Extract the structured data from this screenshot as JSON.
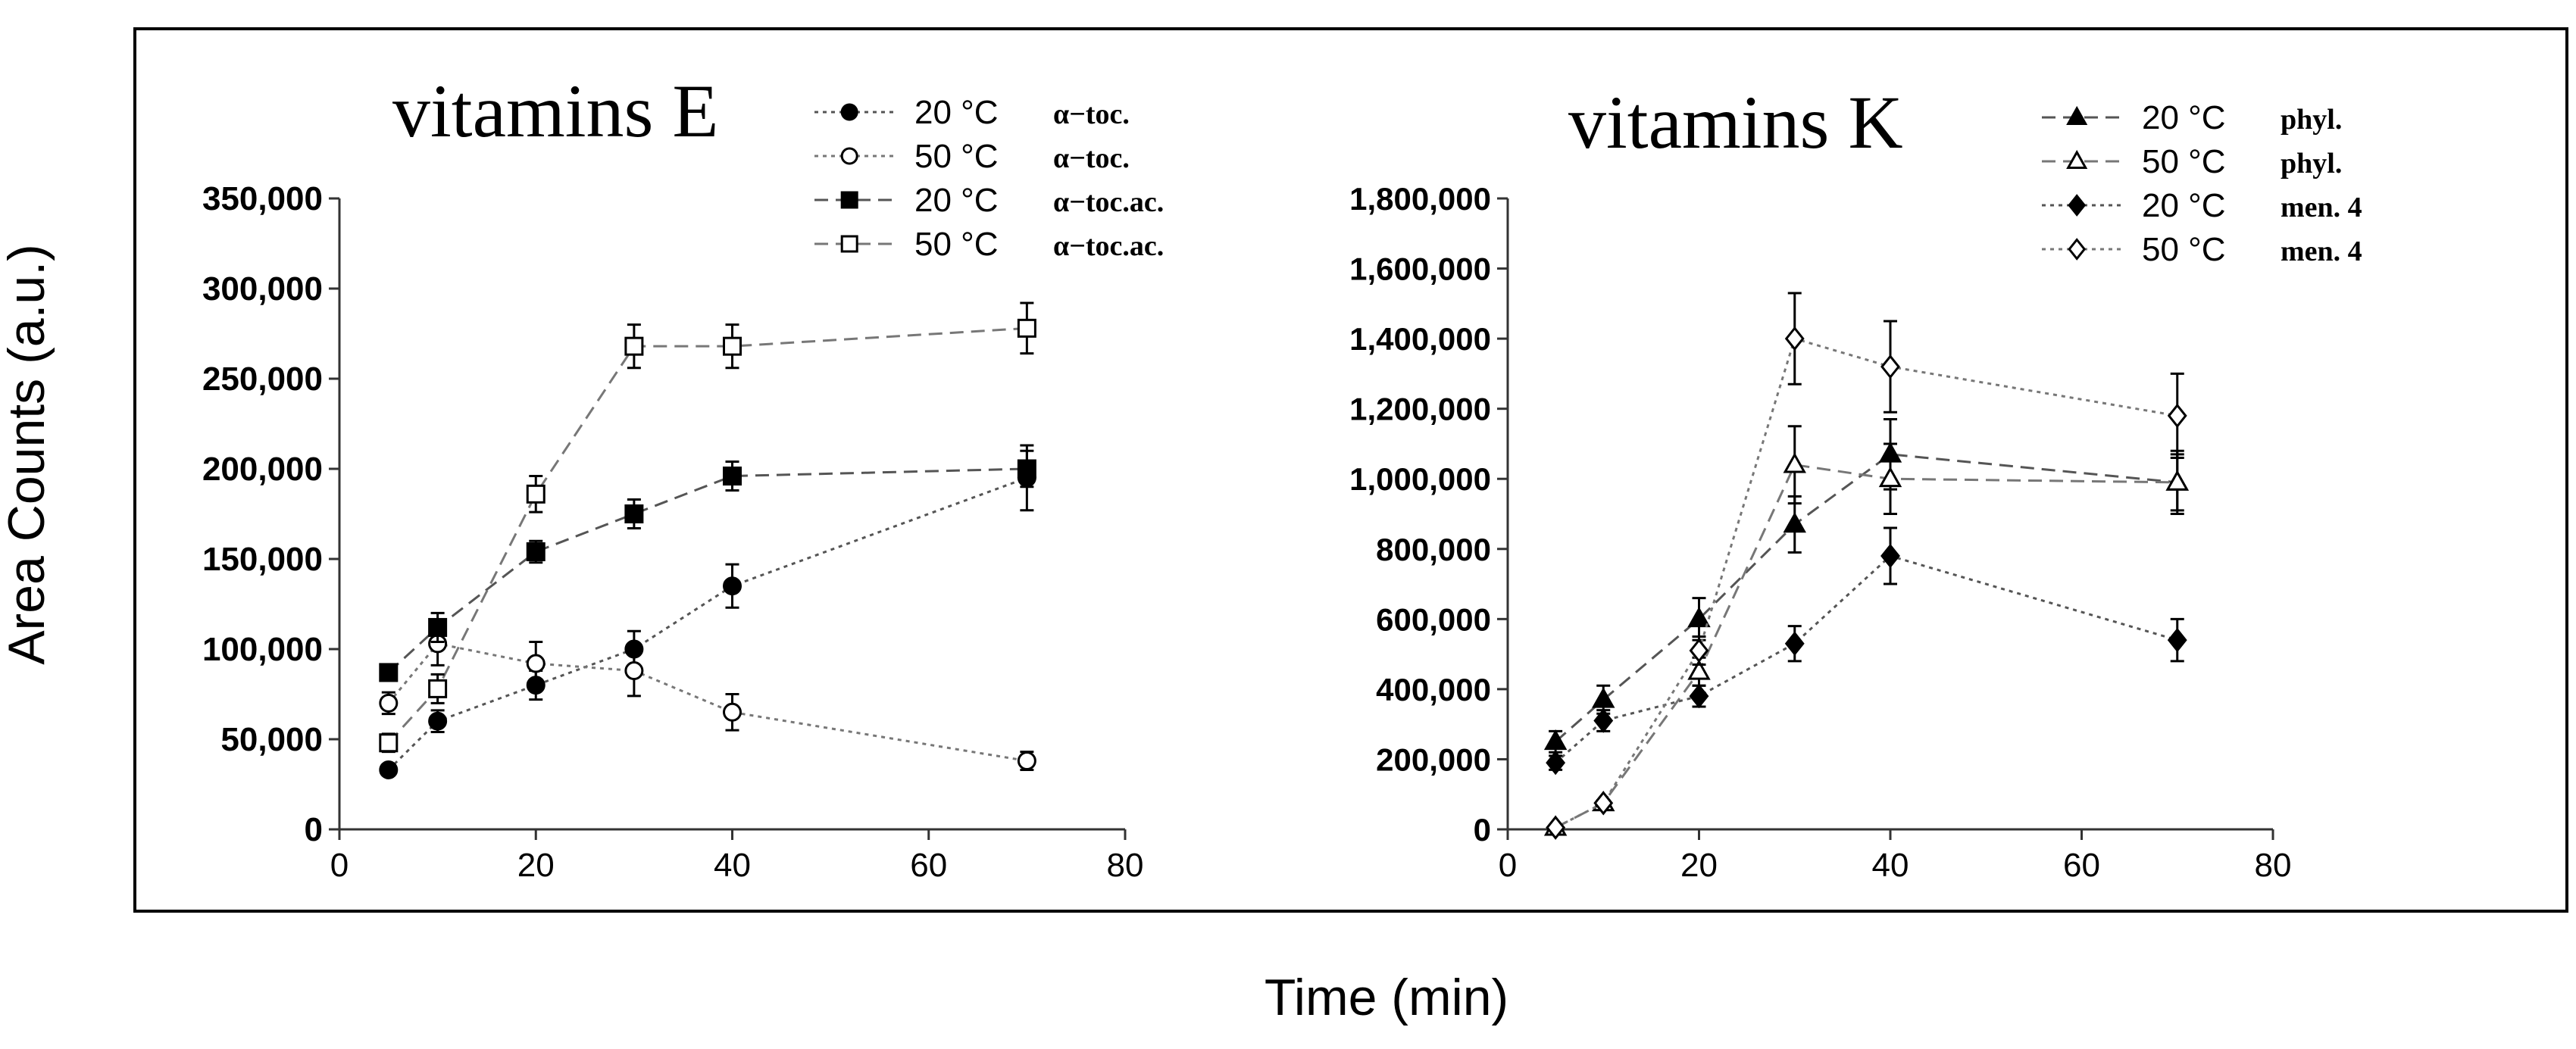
{
  "figure": {
    "ylabel": "Area Counts (a.u.)",
    "xlabel": "Time (min)",
    "colors": {
      "background": "#ffffff",
      "frame": "#000000",
      "ink": "#000000"
    }
  },
  "chart_data": [
    {
      "type": "line",
      "title": "vitamins E",
      "xlabel": "Time (min)",
      "ylabel": "Area Counts (a.u.)",
      "xlim": [
        0,
        80
      ],
      "ylim": [
        0,
        350000
      ],
      "xticks": [
        0,
        20,
        40,
        60,
        80
      ],
      "xtick_labels": [
        "0",
        "20",
        "40",
        "60",
        "80"
      ],
      "yticks": [
        0,
        50000,
        100000,
        150000,
        200000,
        250000,
        300000,
        350000
      ],
      "ytick_labels": [
        "0",
        "50,000",
        "100,000",
        "150,000",
        "200,000",
        "250,000",
        "300,000",
        "350,000"
      ],
      "legend_position": "top-right",
      "series": [
        {
          "name": "α−toc.",
          "temp": "20 °C",
          "marker": "circle",
          "filled": true,
          "dash": "dotted",
          "x": [
            5,
            10,
            20,
            30,
            40,
            70
          ],
          "y": [
            33000,
            60000,
            80000,
            100000,
            135000,
            195000
          ],
          "err": [
            3000,
            6000,
            8000,
            10000,
            12000,
            18000
          ]
        },
        {
          "name": "α−toc.",
          "temp": "50 °C",
          "marker": "circle",
          "filled": false,
          "dash": "dotted",
          "x": [
            5,
            10,
            20,
            30,
            40,
            70
          ],
          "y": [
            70000,
            103000,
            92000,
            88000,
            65000,
            38000
          ],
          "err": [
            6000,
            12000,
            12000,
            14000,
            10000,
            5000
          ]
        },
        {
          "name": "α−toc.ac.",
          "temp": "20 °C",
          "marker": "square",
          "filled": true,
          "dash": "dashed",
          "x": [
            5,
            10,
            20,
            30,
            40,
            70
          ],
          "y": [
            87000,
            112000,
            154000,
            175000,
            196000,
            200000
          ],
          "err": [
            4000,
            8000,
            6000,
            8000,
            8000,
            10000
          ]
        },
        {
          "name": "α−toc.ac.",
          "temp": "50 °C",
          "marker": "square",
          "filled": false,
          "dash": "dashed",
          "x": [
            5,
            10,
            20,
            30,
            40,
            70
          ],
          "y": [
            48000,
            78000,
            186000,
            268000,
            268000,
            278000
          ],
          "err": [
            5000,
            8000,
            10000,
            12000,
            12000,
            14000
          ]
        }
      ]
    },
    {
      "type": "line",
      "title": "vitamins K",
      "xlabel": "Time (min)",
      "ylabel": "Area Counts (a.u.)",
      "xlim": [
        0,
        80
      ],
      "ylim": [
        0,
        1800000
      ],
      "xticks": [
        0,
        20,
        40,
        60,
        80
      ],
      "xtick_labels": [
        "0",
        "20",
        "40",
        "60",
        "80"
      ],
      "yticks": [
        0,
        200000,
        400000,
        600000,
        800000,
        1000000,
        1200000,
        1400000,
        1600000,
        1800000
      ],
      "ytick_labels": [
        "0",
        "200,000",
        "400,000",
        "600,000",
        "800,000",
        "1,000,000",
        "1,200,000",
        "1,400,000",
        "1,600,000",
        "1,800,000"
      ],
      "legend_position": "top-right",
      "series": [
        {
          "name": "phyl.",
          "temp": "20 °C",
          "marker": "triangle",
          "filled": true,
          "dash": "dashed",
          "x": [
            5,
            10,
            20,
            30,
            40,
            70
          ],
          "y": [
            250000,
            370000,
            600000,
            870000,
            1070000,
            990000
          ],
          "err": [
            30000,
            40000,
            60000,
            80000,
            100000,
            80000
          ]
        },
        {
          "name": "phyl.",
          "temp": "50 °C",
          "marker": "triangle",
          "filled": false,
          "dash": "dashed",
          "x": [
            5,
            10,
            20,
            30,
            40,
            70
          ],
          "y": [
            5000,
            75000,
            450000,
            1040000,
            1000000,
            990000
          ],
          "err": [
            3000,
            8000,
            40000,
            110000,
            100000,
            90000
          ]
        },
        {
          "name": "men. 4",
          "temp": "20 °C",
          "marker": "diamond",
          "filled": true,
          "dash": "dotted",
          "x": [
            5,
            10,
            20,
            30,
            40,
            70
          ],
          "y": [
            190000,
            310000,
            380000,
            530000,
            780000,
            540000
          ],
          "err": [
            20000,
            30000,
            30000,
            50000,
            80000,
            60000
          ]
        },
        {
          "name": "men. 4",
          "temp": "50 °C",
          "marker": "diamond",
          "filled": false,
          "dash": "dotted",
          "x": [
            5,
            10,
            20,
            30,
            40,
            70
          ],
          "y": [
            5000,
            75000,
            510000,
            1400000,
            1320000,
            1180000
          ],
          "err": [
            3000,
            8000,
            40000,
            130000,
            130000,
            120000
          ]
        }
      ]
    }
  ]
}
